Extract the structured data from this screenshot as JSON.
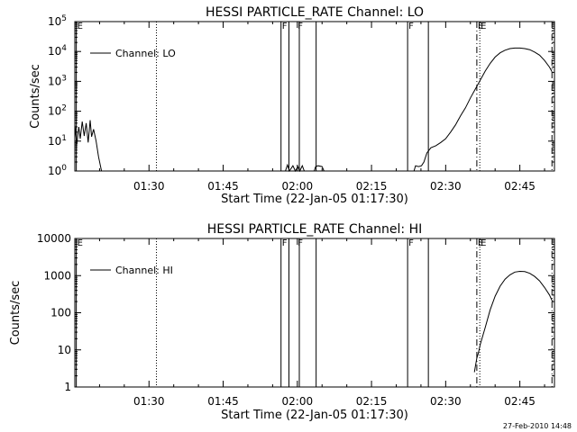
{
  "footer_timestamp": "27-Feb-2010 14:48",
  "chart_data": [
    {
      "type": "line",
      "title": "HESSI PARTICLE_RATE Channel: LO",
      "xlabel": "Start Time (22-Jan-05 01:17:30)",
      "ylabel": "Counts/sec",
      "x_unit": "minutes since 01:17:30",
      "xlim": [
        0,
        97
      ],
      "ylim": [
        1,
        100000
      ],
      "y_scale": "log",
      "x_ticks": [
        {
          "x": 15,
          "label": "01:30"
        },
        {
          "x": 30,
          "label": "01:45"
        },
        {
          "x": 45,
          "label": "02:00"
        },
        {
          "x": 60,
          "label": "02:15"
        },
        {
          "x": 75,
          "label": "02:30"
        },
        {
          "x": 90,
          "label": "02:45"
        }
      ],
      "y_ticks": [
        {
          "v": 1,
          "label": "10^0"
        },
        {
          "v": 10,
          "label": "10^1"
        },
        {
          "v": 100,
          "label": "10^2"
        },
        {
          "v": 1000,
          "label": "10^3"
        },
        {
          "v": 10000,
          "label": "10^4"
        },
        {
          "v": 100000,
          "label": "10^5"
        }
      ],
      "y_tick_style": "power",
      "legend": {
        "label": "Channel: LO",
        "placement": "top-left"
      },
      "series": [
        {
          "name": "Channel: LO",
          "segments": [
            [
              [
                0,
                35
              ],
              [
                0.4,
                8
              ],
              [
                0.8,
                30
              ],
              [
                1.1,
                12
              ],
              [
                1.5,
                45
              ],
              [
                1.9,
                15
              ],
              [
                2.3,
                40
              ],
              [
                2.7,
                9
              ],
              [
                3.1,
                50
              ],
              [
                3.4,
                14
              ],
              [
                3.8,
                25
              ],
              [
                4.3,
                10
              ],
              [
                4.8,
                3
              ],
              [
                5.4,
                1
              ]
            ],
            [
              [
                42.6,
                1
              ],
              [
                43,
                1.6
              ],
              [
                43.4,
                1
              ],
              [
                44.1,
                1.5
              ],
              [
                44.6,
                1
              ],
              [
                45.1,
                1.4
              ],
              [
                45.5,
                1
              ],
              [
                46,
                1.5
              ],
              [
                46.4,
                1
              ]
            ],
            [
              [
                48.4,
                1
              ],
              [
                48.7,
                1.4
              ],
              [
                49.2,
                1.5
              ],
              [
                50,
                1.4
              ],
              [
                50.4,
                1
              ]
            ],
            [
              [
                68.6,
                1
              ],
              [
                68.9,
                1.5
              ],
              [
                69.5,
                1.4
              ],
              [
                70.1,
                1.5
              ],
              [
                70.6,
                2
              ],
              [
                71.2,
                4
              ],
              [
                72,
                6
              ],
              [
                73,
                7
              ],
              [
                74,
                9
              ],
              [
                75,
                12
              ],
              [
                76,
                20
              ],
              [
                77,
                35
              ],
              [
                78,
                70
              ],
              [
                79,
                130
              ],
              [
                80,
                280
              ],
              [
                81,
                550
              ],
              [
                82,
                1100
              ],
              [
                83,
                2200
              ],
              [
                84,
                4000
              ],
              [
                85,
                6500
              ],
              [
                86,
                9000
              ],
              [
                87,
                11000
              ],
              [
                88,
                12500
              ],
              [
                89,
                13000
              ],
              [
                90,
                13000
              ],
              [
                91,
                12500
              ],
              [
                92,
                11500
              ],
              [
                93,
                9500
              ],
              [
                94,
                7500
              ],
              [
                95,
                5000
              ],
              [
                96,
                3000
              ],
              [
                96.5,
                2100
              ]
            ]
          ]
        }
      ],
      "vlines": [
        {
          "x": 0.3,
          "style": "solid"
        },
        {
          "x": 16.5,
          "style": "dotted"
        },
        {
          "x": 41.7,
          "style": "solid"
        },
        {
          "x": 43.3,
          "style": "solid"
        },
        {
          "x": 45.4,
          "style": "solid"
        },
        {
          "x": 48.8,
          "style": "solid"
        },
        {
          "x": 67.3,
          "style": "solid"
        },
        {
          "x": 71.5,
          "style": "solid"
        },
        {
          "x": 81.3,
          "style": "dashdot"
        },
        {
          "x": 81.9,
          "style": "dotted"
        },
        {
          "x": 96.5,
          "style": "dashdot"
        }
      ],
      "flags": [
        {
          "x": 0.3,
          "text": "E"
        },
        {
          "x": 41.7,
          "text": "F"
        },
        {
          "x": 44.9,
          "text": "F"
        },
        {
          "x": 67.3,
          "text": "F"
        },
        {
          "x": 81.3,
          "text": "E"
        },
        {
          "x": 81.9,
          "text": "E"
        }
      ]
    },
    {
      "type": "line",
      "title": "HESSI PARTICLE_RATE Channel: HI",
      "xlabel": "Start Time (22-Jan-05 01:17:30)",
      "ylabel": "Counts/sec",
      "x_unit": "minutes since 01:17:30",
      "xlim": [
        0,
        97
      ],
      "ylim": [
        1,
        10000
      ],
      "y_scale": "log",
      "x_ticks": [
        {
          "x": 15,
          "label": "01:30"
        },
        {
          "x": 30,
          "label": "01:45"
        },
        {
          "x": 45,
          "label": "02:00"
        },
        {
          "x": 60,
          "label": "02:15"
        },
        {
          "x": 75,
          "label": "02:30"
        },
        {
          "x": 90,
          "label": "02:45"
        }
      ],
      "y_ticks": [
        {
          "v": 1,
          "label": "1"
        },
        {
          "v": 10,
          "label": "10"
        },
        {
          "v": 100,
          "label": "100"
        },
        {
          "v": 1000,
          "label": "1000"
        },
        {
          "v": 10000,
          "label": "10000"
        }
      ],
      "y_tick_style": "plain",
      "legend": {
        "label": "Channel: HI",
        "placement": "top-left"
      },
      "series": [
        {
          "name": "Channel: HI",
          "segments": [
            [
              [
                80.8,
                2.5
              ],
              [
                81,
                3.5
              ],
              [
                81.3,
                6
              ],
              [
                81.6,
                8
              ],
              [
                82,
                14
              ],
              [
                83,
                40
              ],
              [
                84,
                120
              ],
              [
                85,
                280
              ],
              [
                86,
                520
              ],
              [
                87,
                800
              ],
              [
                88,
                1050
              ],
              [
                89,
                1250
              ],
              [
                90,
                1300
              ],
              [
                91,
                1280
              ],
              [
                92,
                1150
              ],
              [
                93,
                950
              ],
              [
                94,
                720
              ],
              [
                95,
                480
              ],
              [
                96,
                300
              ],
              [
                96.6,
                200
              ]
            ]
          ]
        }
      ],
      "vlines": [
        {
          "x": 0.3,
          "style": "solid"
        },
        {
          "x": 16.5,
          "style": "dotted"
        },
        {
          "x": 41.7,
          "style": "solid"
        },
        {
          "x": 43.3,
          "style": "solid"
        },
        {
          "x": 45.4,
          "style": "solid"
        },
        {
          "x": 48.8,
          "style": "solid"
        },
        {
          "x": 67.3,
          "style": "solid"
        },
        {
          "x": 71.5,
          "style": "solid"
        },
        {
          "x": 81.3,
          "style": "dashdot"
        },
        {
          "x": 81.9,
          "style": "dotted"
        },
        {
          "x": 96.5,
          "style": "dashdot"
        }
      ],
      "flags": [
        {
          "x": 0.3,
          "text": "E"
        },
        {
          "x": 41.7,
          "text": "F"
        },
        {
          "x": 44.9,
          "text": "F"
        },
        {
          "x": 67.3,
          "text": "F"
        },
        {
          "x": 81.3,
          "text": "E"
        },
        {
          "x": 81.9,
          "text": "E"
        }
      ]
    }
  ]
}
